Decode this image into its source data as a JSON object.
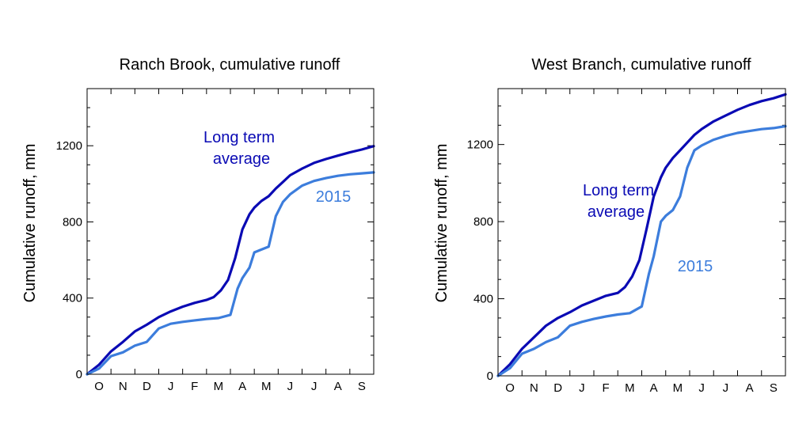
{
  "chart_data": [
    {
      "type": "line",
      "title": "Ranch Brook, cumulative runoff",
      "ylabel": "Cumulative runoff, mm",
      "xlabel": "",
      "x_tick_labels": [
        "O",
        "N",
        "D",
        "J",
        "F",
        "M",
        "A",
        "M",
        "J",
        "J",
        "A",
        "S"
      ],
      "xlim": [
        0,
        12
      ],
      "ylim": [
        0,
        1500
      ],
      "y_ticks": [
        0,
        400,
        800,
        1200
      ],
      "y_tick_labels": [
        "0",
        "400",
        "800",
        "1200"
      ],
      "grid": false,
      "series": [
        {
          "name": "Long term average",
          "color": "#0a0ab4",
          "x": [
            0,
            0.5,
            1,
            1.5,
            2,
            2.5,
            3,
            3.5,
            4,
            4.5,
            5,
            5.3,
            5.6,
            5.9,
            6.2,
            6.5,
            6.8,
            7,
            7.3,
            7.6,
            7.9,
            8.2,
            8.5,
            9,
            9.5,
            10,
            10.5,
            11,
            11.5,
            12
          ],
          "values": [
            0,
            50,
            120,
            170,
            225,
            260,
            300,
            330,
            355,
            375,
            390,
            405,
            440,
            495,
            610,
            760,
            840,
            875,
            910,
            935,
            975,
            1010,
            1045,
            1080,
            1110,
            1130,
            1148,
            1165,
            1180,
            1198
          ]
        },
        {
          "name": "2015",
          "color": "#3c7ddc",
          "x": [
            0,
            0.5,
            1,
            1.5,
            2,
            2.5,
            3,
            3.5,
            4,
            4.5,
            5,
            5.5,
            6,
            6.3,
            6.5,
            6.8,
            7,
            7.3,
            7.6,
            7.9,
            8.2,
            8.5,
            9,
            9.5,
            10,
            10.5,
            11,
            11.5,
            12
          ],
          "values": [
            0,
            30,
            95,
            115,
            150,
            170,
            240,
            265,
            275,
            283,
            290,
            295,
            312,
            450,
            505,
            560,
            640,
            655,
            670,
            830,
            905,
            945,
            990,
            1015,
            1030,
            1042,
            1050,
            1055,
            1060
          ]
        }
      ],
      "annotations": [
        {
          "text": "Long term",
          "color": "#0a0ab4"
        },
        {
          "text": "average",
          "color": "#0a0ab4"
        },
        {
          "text": "2015",
          "color": "#3c7ddc"
        }
      ]
    },
    {
      "type": "line",
      "title": "West Branch, cumulative runoff",
      "ylabel": "Cumulative runoff, mm",
      "xlabel": "",
      "x_tick_labels": [
        "O",
        "N",
        "D",
        "J",
        "F",
        "M",
        "A",
        "M",
        "J",
        "J",
        "A",
        "S"
      ],
      "xlim": [
        0,
        12
      ],
      "ylim": [
        0,
        1490
      ],
      "y_ticks": [
        0,
        400,
        800,
        1200
      ],
      "y_tick_labels": [
        "0",
        "400",
        "800",
        "1200"
      ],
      "grid": false,
      "series": [
        {
          "name": "Long term average",
          "color": "#0a0ab4",
          "x": [
            0,
            0.5,
            1,
            1.5,
            2,
            2.5,
            3,
            3.5,
            4,
            4.5,
            5,
            5.3,
            5.6,
            5.9,
            6.2,
            6.5,
            6.8,
            7,
            7.3,
            7.6,
            7.9,
            8.2,
            8.5,
            9,
            9.5,
            10,
            10.5,
            11,
            11.5,
            12
          ],
          "values": [
            0,
            60,
            140,
            200,
            260,
            300,
            330,
            365,
            390,
            415,
            430,
            460,
            515,
            600,
            760,
            930,
            1030,
            1080,
            1130,
            1170,
            1210,
            1250,
            1280,
            1320,
            1350,
            1380,
            1405,
            1425,
            1440,
            1460
          ]
        },
        {
          "name": "2015",
          "color": "#3c7ddc",
          "x": [
            0,
            0.5,
            1,
            1.5,
            2,
            2.5,
            3,
            3.5,
            4,
            4.5,
            5,
            5.5,
            6,
            6.3,
            6.5,
            6.8,
            7,
            7.3,
            7.6,
            7.9,
            8.2,
            8.5,
            9,
            9.5,
            10,
            10.5,
            11,
            11.5,
            12
          ],
          "values": [
            0,
            40,
            115,
            140,
            175,
            200,
            260,
            280,
            295,
            308,
            318,
            325,
            360,
            530,
            620,
            800,
            830,
            860,
            930,
            1080,
            1170,
            1195,
            1225,
            1245,
            1260,
            1270,
            1280,
            1285,
            1295
          ]
        }
      ],
      "annotations": [
        {
          "text": "Long term",
          "color": "#0a0ab4"
        },
        {
          "text": "average",
          "color": "#0a0ab4"
        },
        {
          "text": "2015",
          "color": "#3c7ddc"
        }
      ]
    }
  ]
}
